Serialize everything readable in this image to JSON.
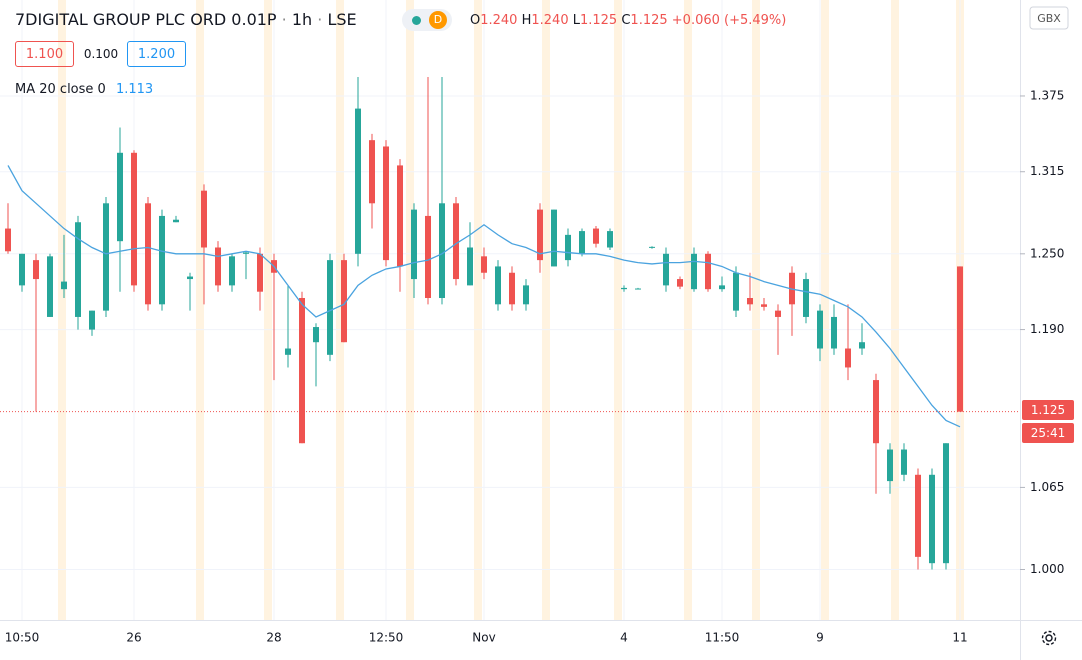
{
  "header": {
    "title": "7DIGITAL GROUP PLC ORD 0.01P",
    "interval": "1h",
    "exchange": "LSE",
    "badge": "D",
    "open_label": "O",
    "open": "1.240",
    "high_label": "H",
    "high": "1.240",
    "low_label": "L",
    "low": "1.125",
    "close_label": "C",
    "close": "1.125",
    "change": "+0.060 (+5.49%)",
    "sell": "1.100",
    "spread": "0.100",
    "buy": "1.200",
    "ma_value": "1.113",
    "currency": "GBX",
    "countdown": "25:41"
  },
  "chart_data": {
    "type": "candlestick",
    "up_color": "#26a69a",
    "down_color": "#ef5350",
    "categories": [
      null,
      "10:50",
      null,
      null,
      null,
      null,
      null,
      null,
      null,
      "26",
      null,
      null,
      null,
      null,
      null,
      null,
      null,
      null,
      null,
      "28",
      null,
      null,
      null,
      null,
      null,
      null,
      null,
      "12:50",
      null,
      null,
      null,
      null,
      null,
      null,
      "Nov",
      null,
      null,
      null,
      null,
      null,
      null,
      null,
      null,
      null,
      "4",
      null,
      null,
      null,
      null,
      null,
      null,
      "11:50",
      null,
      null,
      null,
      null,
      null,
      null,
      "9",
      null,
      null,
      null,
      null,
      null,
      null,
      null,
      null,
      null,
      "11"
    ],
    "open": [
      1.27,
      1.225,
      1.245,
      1.2,
      1.222,
      1.2,
      1.19,
      1.205,
      1.26,
      1.33,
      1.29,
      1.21,
      1.275,
      1.23,
      1.3,
      1.255,
      1.225,
      1.25,
      1.25,
      1.245,
      1.17,
      1.215,
      1.18,
      1.17,
      1.245,
      1.25,
      1.34,
      1.335,
      1.32,
      1.23,
      1.28,
      1.215,
      1.29,
      1.225,
      1.248,
      1.21,
      1.235,
      1.21,
      1.285,
      1.24,
      1.245,
      1.25,
      1.27,
      1.255,
      1.222,
      1.222,
      1.255,
      1.225,
      1.23,
      1.222,
      1.25,
      1.222,
      1.205,
      1.215,
      1.21,
      1.205,
      1.235,
      1.2,
      1.175,
      1.175,
      1.175,
      1.175,
      1.15,
      1.07,
      1.075,
      1.075,
      1.005,
      1.005,
      1.24
    ],
    "high": [
      1.29,
      1.25,
      1.25,
      1.25,
      1.265,
      1.28,
      1.205,
      1.295,
      1.35,
      1.332,
      1.295,
      1.285,
      1.28,
      1.235,
      1.305,
      1.26,
      1.25,
      1.252,
      1.255,
      1.25,
      1.225,
      1.22,
      1.195,
      1.25,
      1.25,
      1.39,
      1.345,
      1.34,
      1.325,
      1.29,
      1.39,
      1.39,
      1.295,
      1.275,
      1.255,
      1.245,
      1.24,
      1.23,
      1.29,
      1.285,
      1.27,
      1.27,
      1.272,
      1.27,
      1.225,
      1.223,
      1.256,
      1.255,
      1.232,
      1.255,
      1.252,
      1.232,
      1.24,
      1.235,
      1.215,
      1.21,
      1.24,
      1.235,
      1.21,
      1.21,
      1.21,
      1.195,
      1.155,
      1.1,
      1.1,
      1.08,
      1.08,
      1.1,
      1.24
    ],
    "low": [
      1.25,
      1.22,
      1.125,
      1.2,
      1.215,
      1.19,
      1.185,
      1.2,
      1.22,
      1.22,
      1.205,
      1.205,
      1.275,
      1.205,
      1.21,
      1.22,
      1.22,
      1.23,
      1.205,
      1.15,
      1.16,
      1.1,
      1.145,
      1.165,
      1.18,
      1.24,
      1.27,
      1.24,
      1.22,
      1.215,
      1.21,
      1.21,
      1.225,
      1.225,
      1.23,
      1.205,
      1.205,
      1.205,
      1.235,
      1.24,
      1.24,
      1.248,
      1.255,
      1.253,
      1.22,
      1.222,
      1.254,
      1.22,
      1.222,
      1.22,
      1.22,
      1.22,
      1.2,
      1.205,
      1.205,
      1.17,
      1.185,
      1.195,
      1.165,
      1.17,
      1.15,
      1.17,
      1.06,
      1.06,
      1.07,
      1.0,
      1.0,
      1.0,
      1.125
    ],
    "close": [
      1.252,
      1.25,
      1.23,
      1.248,
      1.228,
      1.275,
      1.205,
      1.29,
      1.33,
      1.225,
      1.21,
      1.28,
      1.277,
      1.232,
      1.255,
      1.225,
      1.248,
      1.251,
      1.22,
      1.235,
      1.175,
      1.1,
      1.192,
      1.245,
      1.18,
      1.365,
      1.29,
      1.245,
      1.24,
      1.285,
      1.215,
      1.29,
      1.23,
      1.255,
      1.235,
      1.24,
      1.21,
      1.225,
      1.245,
      1.285,
      1.265,
      1.268,
      1.258,
      1.268,
      1.223,
      1.2225,
      1.2555,
      1.25,
      1.224,
      1.25,
      1.222,
      1.225,
      1.235,
      1.21,
      1.208,
      1.2,
      1.21,
      1.23,
      1.205,
      1.2,
      1.16,
      1.18,
      1.1,
      1.095,
      1.095,
      1.01,
      1.075,
      1.1,
      1.125
    ],
    "series": [
      {
        "name": "MA 20 close 0",
        "color": "#4aa3df",
        "values": [
          1.32,
          1.3,
          1.29,
          1.28,
          1.27,
          1.262,
          1.255,
          1.25,
          1.252,
          1.254,
          1.255,
          1.252,
          1.25,
          1.25,
          1.25,
          1.248,
          1.25,
          1.252,
          1.25,
          1.24,
          1.225,
          1.21,
          1.2,
          1.205,
          1.21,
          1.225,
          1.233,
          1.238,
          1.24,
          1.243,
          1.245,
          1.25,
          1.258,
          1.265,
          1.273,
          1.265,
          1.258,
          1.255,
          1.25,
          1.252,
          1.251,
          1.25,
          1.25,
          1.248,
          1.245,
          1.243,
          1.242,
          1.243,
          1.243,
          1.244,
          1.243,
          1.24,
          1.235,
          1.232,
          1.228,
          1.225,
          1.222,
          1.22,
          1.218,
          1.213,
          1.208,
          1.2,
          1.188,
          1.175,
          1.16,
          1.145,
          1.13,
          1.118,
          1.113
        ]
      }
    ],
    "last_price": {
      "value": 1.125,
      "label": "1.125"
    },
    "ylim": [
      0.96,
      1.451
    ],
    "yticks": [
      {
        "value": 1.0,
        "label": "1.000"
      },
      {
        "value": 1.065,
        "label": "1.065"
      },
      {
        "value": 1.19,
        "label": "1.190"
      },
      {
        "value": 1.25,
        "label": "1.250"
      },
      {
        "value": 1.315,
        "label": "1.315"
      },
      {
        "value": 1.375,
        "label": "1.375"
      }
    ],
    "grid": true
  }
}
